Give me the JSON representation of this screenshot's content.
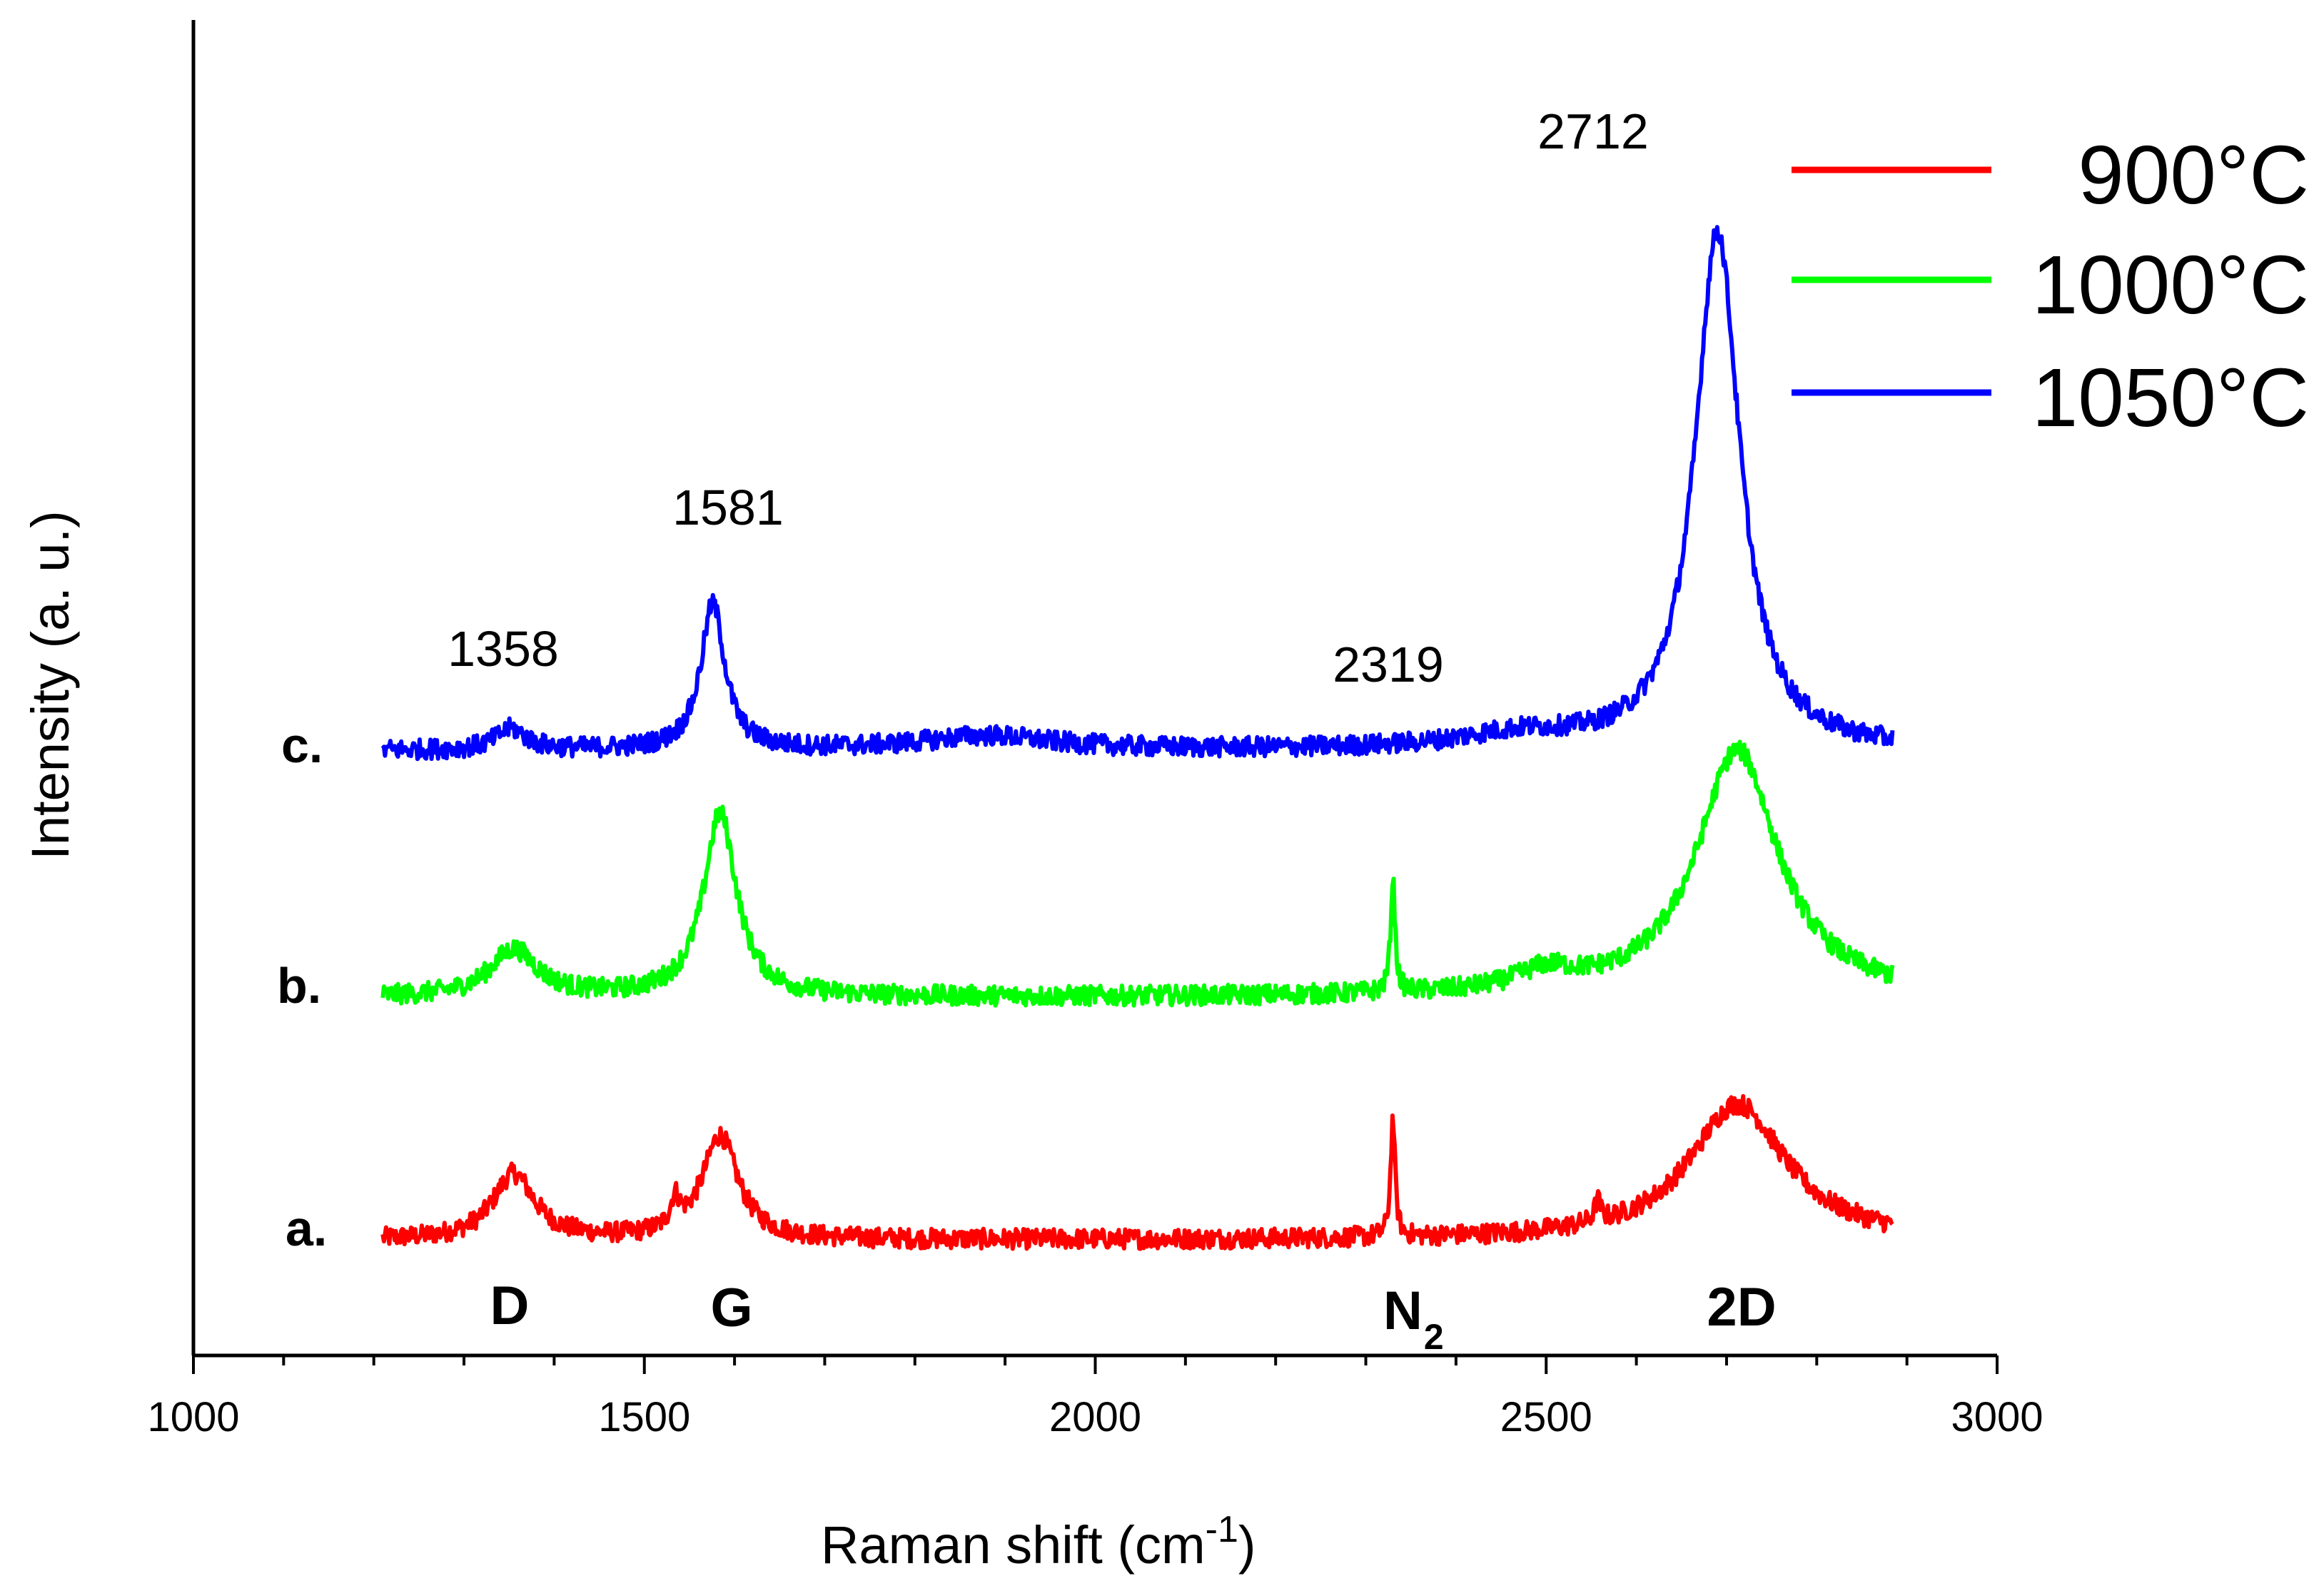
{
  "chart_data": {
    "type": "line",
    "xlabel": "Raman shift (cm",
    "xlabel_superscript": "-1",
    "xlabel_close": ")",
    "ylabel": "Intensity (a. u.)",
    "xlim": [
      1000,
      3000
    ],
    "x_ticks": [
      1000,
      1500,
      2000,
      2500,
      3000
    ],
    "y_ticks_shown": false,
    "legend_position": "top-right",
    "series": [
      {
        "name": "900°C",
        "trace_label": "a.",
        "color": "#ff0000",
        "x_range": [
          1210,
          2885
        ],
        "baseline": 0.0,
        "peaks": [
          {
            "x": 1355,
            "height": 0.28,
            "width": 28
          },
          {
            "x": 1534,
            "height": 0.12,
            "width": 6
          },
          {
            "x": 1584,
            "height": 0.44,
            "width": 24
          },
          {
            "x": 2330,
            "height": 0.5,
            "width": 3
          },
          {
            "x": 2557,
            "height": 0.09,
            "width": 4
          },
          {
            "x": 2712,
            "height": 0.58,
            "width": 65
          }
        ]
      },
      {
        "name": "1000°C",
        "trace_label": "b.",
        "color": "#00ff00",
        "x_range": [
          1210,
          2885
        ],
        "baseline": 1.0,
        "peaks": [
          {
            "x": 1355,
            "height": 0.2,
            "width": 32
          },
          {
            "x": 1584,
            "height": 0.78,
            "width": 22
          },
          {
            "x": 2330,
            "height": 0.48,
            "width": 3
          },
          {
            "x": 2500,
            "height": 0.08,
            "width": 40
          },
          {
            "x": 2712,
            "height": 1.05,
            "width": 55
          }
        ]
      },
      {
        "name": "1050°C",
        "trace_label": "c.",
        "color": "#0000ff",
        "x_range": [
          1210,
          2885
        ],
        "baseline": 2.0,
        "peaks": [
          {
            "x": 1352,
            "height": 0.09,
            "width": 20
          },
          {
            "x": 1576,
            "height": 0.62,
            "width": 16
          },
          {
            "x": 1880,
            "height": 0.06,
            "width": 90
          },
          {
            "x": 2470,
            "height": 0.06,
            "width": 80
          },
          {
            "x": 2690,
            "height": 2.2,
            "width": 30
          }
        ]
      }
    ],
    "peak_annotations": [
      {
        "text": "1358",
        "x": 1358
      },
      {
        "text": "1581",
        "x": 1581
      },
      {
        "text": "2319",
        "x": 2319
      },
      {
        "text": "2712",
        "x": 2712
      }
    ],
    "band_labels": [
      {
        "text": "D",
        "x": 1358
      },
      {
        "text": "G",
        "x": 1581
      },
      {
        "text": "N",
        "subscript": "2",
        "x": 2319
      },
      {
        "text": "2D",
        "x": 2712
      }
    ]
  }
}
